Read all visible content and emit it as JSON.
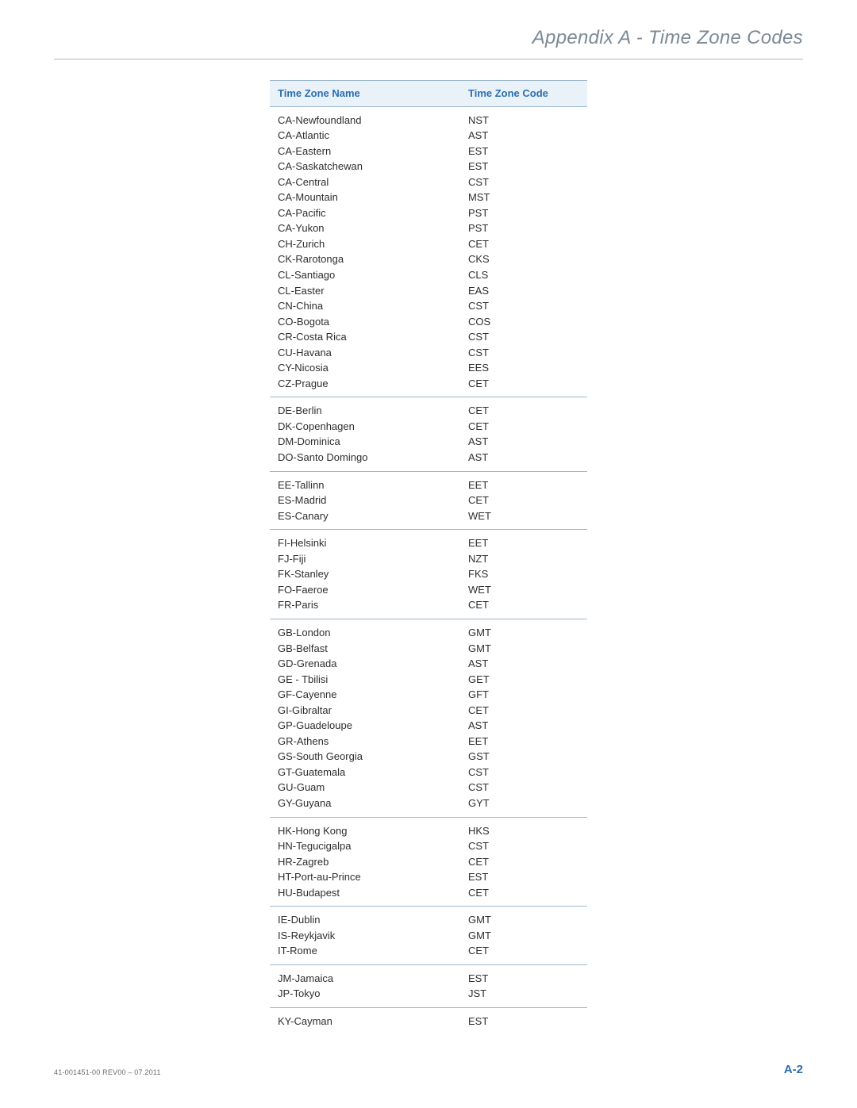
{
  "page": {
    "header_title": "Appendix A - Time Zone Codes",
    "footer_left": "41-001451-00 REV00 – 07.2011",
    "footer_right": "A-2"
  },
  "table": {
    "columns": [
      "Time Zone Name",
      "Time Zone Code"
    ],
    "header_bg": "#eaf2f9",
    "header_text_color": "#2a6faf",
    "border_color": "#9fb8cc",
    "body_text_color": "#2e2e2e",
    "fontsize": 13,
    "groups": [
      [
        [
          "CA-Newfoundland",
          "NST"
        ],
        [
          "CA-Atlantic",
          "AST"
        ],
        [
          "CA-Eastern",
          "EST"
        ],
        [
          "CA-Saskatchewan",
          "EST"
        ],
        [
          "CA-Central",
          "CST"
        ],
        [
          "CA-Mountain",
          "MST"
        ],
        [
          "CA-Pacific",
          "PST"
        ],
        [
          "CA-Yukon",
          "PST"
        ],
        [
          "CH-Zurich",
          "CET"
        ],
        [
          "CK-Rarotonga",
          "CKS"
        ],
        [
          "CL-Santiago",
          "CLS"
        ],
        [
          "CL-Easter",
          "EAS"
        ],
        [
          "CN-China",
          "CST"
        ],
        [
          "CO-Bogota",
          "COS"
        ],
        [
          "CR-Costa Rica",
          "CST"
        ],
        [
          "CU-Havana",
          "CST"
        ],
        [
          "CY-Nicosia",
          "EES"
        ],
        [
          "CZ-Prague",
          "CET"
        ]
      ],
      [
        [
          "DE-Berlin",
          "CET"
        ],
        [
          "DK-Copenhagen",
          "CET"
        ],
        [
          "DM-Dominica",
          "AST"
        ],
        [
          "DO-Santo Domingo",
          "AST"
        ]
      ],
      [
        [
          "EE-Tallinn",
          "EET"
        ],
        [
          "ES-Madrid",
          "CET"
        ],
        [
          "ES-Canary",
          "WET"
        ]
      ],
      [
        [
          "FI-Helsinki",
          "EET"
        ],
        [
          "FJ-Fiji",
          "NZT"
        ],
        [
          "FK-Stanley",
          "FKS"
        ],
        [
          "FO-Faeroe",
          "WET"
        ],
        [
          "FR-Paris",
          "CET"
        ]
      ],
      [
        [
          "GB-London",
          "GMT"
        ],
        [
          "GB-Belfast",
          "GMT"
        ],
        [
          "GD-Grenada",
          "AST"
        ],
        [
          "GE - Tbilisi",
          "GET"
        ],
        [
          "GF-Cayenne",
          "GFT"
        ],
        [
          "GI-Gibraltar",
          "CET"
        ],
        [
          "GP-Guadeloupe",
          "AST"
        ],
        [
          "GR-Athens",
          "EET"
        ],
        [
          "GS-South Georgia",
          "GST"
        ],
        [
          "GT-Guatemala",
          "CST"
        ],
        [
          "GU-Guam",
          "CST"
        ],
        [
          "GY-Guyana",
          "GYT"
        ]
      ],
      [
        [
          "HK-Hong Kong",
          "HKS"
        ],
        [
          "HN-Tegucigalpa",
          "CST"
        ],
        [
          "HR-Zagreb",
          "CET"
        ],
        [
          "HT-Port-au-Prince",
          "EST"
        ],
        [
          "HU-Budapest",
          "CET"
        ]
      ],
      [
        [
          "IE-Dublin",
          "GMT"
        ],
        [
          "IS-Reykjavik",
          "GMT"
        ],
        [
          "IT-Rome",
          "CET"
        ]
      ],
      [
        [
          "JM-Jamaica",
          "EST"
        ],
        [
          "JP-Tokyo",
          "JST"
        ]
      ],
      [
        [
          "KY-Cayman",
          "EST"
        ]
      ]
    ]
  }
}
